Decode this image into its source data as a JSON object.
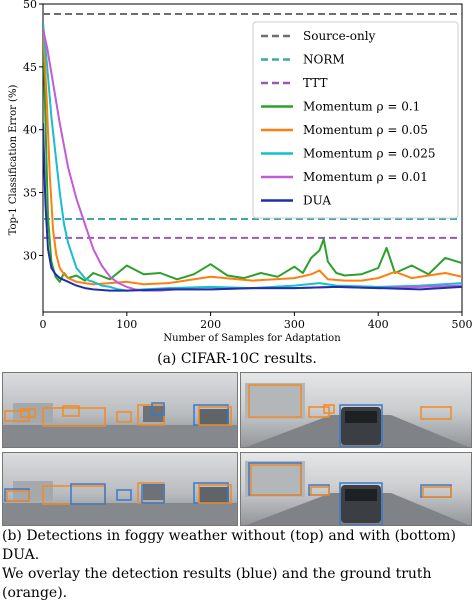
{
  "figure_a": {
    "caption": "(a) CIFAR-10C results.",
    "chart_data": {
      "type": "line",
      "title": "",
      "xlabel": "Number of Samples for Adaptation",
      "ylabel": "Top-1 Classification Error (%)",
      "xlim": [
        0,
        500
      ],
      "ylim": [
        25.5,
        50
      ],
      "x_ticks": [
        0,
        100,
        200,
        300,
        400,
        500
      ],
      "y_ticks": [
        30,
        35,
        40,
        45,
        50
      ],
      "grid": false,
      "legend_position": "top-right",
      "series": [
        {
          "name": "Source-only",
          "color": "#6e6e6e",
          "dash": true,
          "constant": 49.2
        },
        {
          "name": "NORM",
          "color": "#3fa7a7",
          "dash": true,
          "constant": 32.9
        },
        {
          "name": "TTT",
          "color": "#9b59b6",
          "dash": true,
          "constant": 31.4
        },
        {
          "name": "Momentum ρ = 0.1",
          "color": "#2ca02c",
          "dash": false,
          "x": [
            0,
            3,
            6,
            10,
            15,
            20,
            25,
            30,
            40,
            50,
            60,
            80,
            100,
            120,
            140,
            160,
            180,
            200,
            220,
            240,
            260,
            280,
            300,
            310,
            320,
            330,
            335,
            340,
            350,
            360,
            380,
            400,
            410,
            420,
            440,
            460,
            480,
            500
          ],
          "y": [
            48.5,
            40.5,
            33.0,
            29.5,
            28.3,
            27.9,
            28.6,
            28.2,
            28.4,
            28.0,
            28.6,
            28.1,
            29.2,
            28.5,
            28.6,
            28.1,
            28.5,
            29.3,
            28.4,
            28.2,
            28.6,
            28.3,
            29.1,
            28.6,
            29.8,
            30.4,
            31.3,
            29.5,
            28.6,
            28.4,
            28.5,
            29.0,
            30.6,
            28.6,
            29.2,
            28.5,
            29.8,
            29.4
          ]
        },
        {
          "name": "Momentum ρ = 0.05",
          "color": "#ff7f0e",
          "dash": false,
          "x": [
            0,
            4,
            8,
            12,
            16,
            20,
            25,
            30,
            40,
            50,
            60,
            80,
            100,
            120,
            150,
            200,
            250,
            300,
            320,
            330,
            340,
            360,
            380,
            400,
            420,
            440,
            460,
            480,
            500
          ],
          "y": [
            48.5,
            43.0,
            36.5,
            32.0,
            30.0,
            29.0,
            28.5,
            28.2,
            27.9,
            27.8,
            27.7,
            27.8,
            27.9,
            27.7,
            27.8,
            28.3,
            28.0,
            28.2,
            28.5,
            28.8,
            28.1,
            28.0,
            28.0,
            28.2,
            28.7,
            28.2,
            28.4,
            28.6,
            28.3
          ]
        },
        {
          "name": "Momentum ρ = 0.025",
          "color": "#17becf",
          "dash": false,
          "x": [
            0,
            5,
            10,
            15,
            20,
            25,
            30,
            35,
            40,
            45,
            50,
            55,
            60,
            70,
            80,
            90,
            100,
            120,
            150,
            200,
            250,
            300,
            330,
            350,
            400,
            450,
            500
          ],
          "y": [
            48.5,
            45.0,
            41.0,
            38.0,
            35.0,
            32.5,
            31.0,
            30.0,
            29.0,
            28.6,
            28.2,
            28.0,
            27.9,
            27.6,
            27.5,
            27.3,
            27.2,
            27.3,
            27.4,
            27.5,
            27.4,
            27.6,
            27.8,
            27.6,
            27.5,
            27.6,
            27.8
          ]
        },
        {
          "name": "Momentum ρ = 0.01",
          "color": "#c45bd6",
          "dash": false,
          "x": [
            0,
            5,
            10,
            20,
            30,
            40,
            50,
            60,
            70,
            80,
            90,
            100,
            110,
            120,
            140,
            160,
            200,
            250,
            300,
            350,
            400,
            450,
            500
          ],
          "y": [
            48.0,
            46.5,
            44.5,
            40.5,
            37.0,
            34.5,
            32.5,
            30.5,
            29.2,
            28.3,
            27.8,
            27.5,
            27.3,
            27.2,
            27.2,
            27.3,
            27.3,
            27.4,
            27.4,
            27.5,
            27.4,
            27.5,
            27.6
          ]
        },
        {
          "name": "DUA",
          "color": "#1f2fa8",
          "dash": false,
          "x": [
            0,
            3,
            6,
            10,
            15,
            20,
            30,
            40,
            50,
            60,
            80,
            100,
            150,
            200,
            250,
            300,
            350,
            400,
            450,
            500
          ],
          "y": [
            40.5,
            34.0,
            30.5,
            29.0,
            28.5,
            28.2,
            27.9,
            27.6,
            27.4,
            27.3,
            27.2,
            27.2,
            27.3,
            27.3,
            27.4,
            27.4,
            27.5,
            27.4,
            27.3,
            27.5
          ]
        }
      ]
    }
  },
  "figure_b": {
    "caption_line1": "(b) Detections in foggy weather without (top) and with (bottom) DUA.",
    "caption_line2": "We overlay the detection results (blue) and the ground truth (orange).",
    "colors": {
      "detection": "#3a78c9",
      "ground_truth": "#f08a24"
    }
  }
}
